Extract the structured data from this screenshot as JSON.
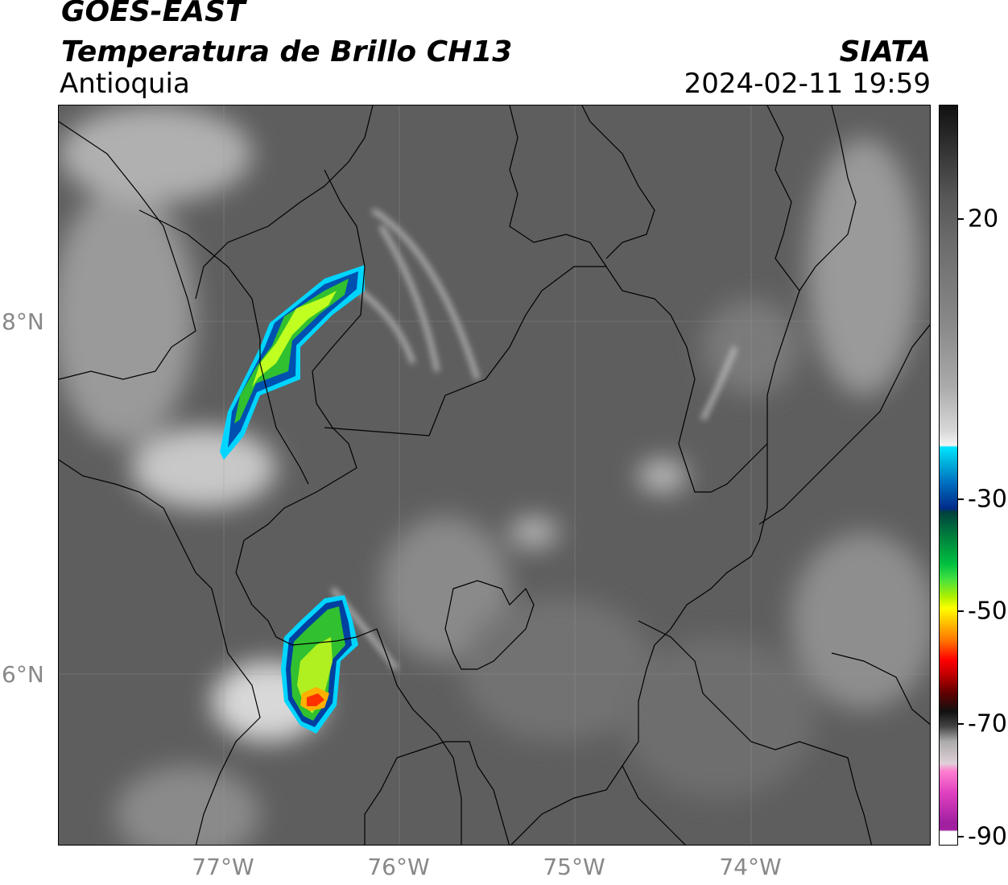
{
  "header": {
    "title": "GOES-EAST",
    "subtitle": "Temperatura de Brillo CH13",
    "region": "Antioquia",
    "agency": "SIATA",
    "datetime": "2024-02-11 19:59"
  },
  "axes": {
    "latitudes": [
      "8°N",
      "6°N"
    ],
    "longitudes": [
      "77°W",
      "76°W",
      "75°W",
      "74°W"
    ]
  },
  "colorbar": {
    "ticks": [
      "20",
      "-30",
      "-50",
      "-70",
      "-90"
    ]
  }
}
